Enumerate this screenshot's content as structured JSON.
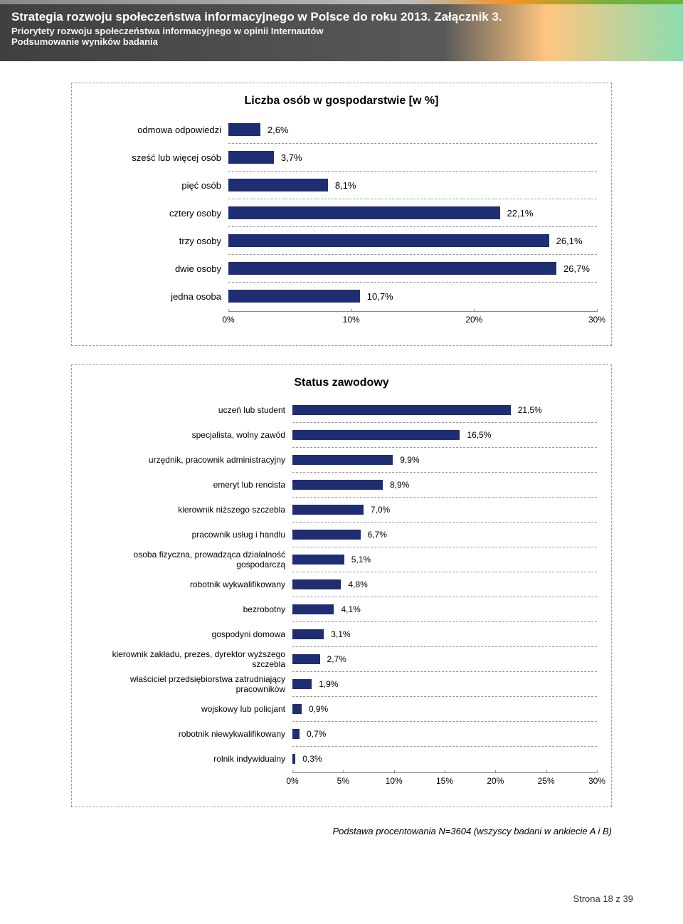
{
  "header": {
    "title": "Strategia rozwoju społeczeństwa informacyjnego w Polsce do roku 2013. Załącznik 3.",
    "sub1": "Priorytety rozwoju społeczeństwa informacyjnego w opinii Internautów",
    "sub2": "Podsumowanie wyników badania"
  },
  "chart1": {
    "title": "Liczba osób w gospodarstwie [w %]",
    "type": "bar",
    "bar_color": "#1f2d73",
    "grid_color": "#bfbfbf",
    "divider_color": "#999999",
    "xlim": 30,
    "ticks": [
      0,
      10,
      20,
      30
    ],
    "tick_labels": [
      "0%",
      "10%",
      "20%",
      "30%"
    ],
    "categories": [
      {
        "label": "odmowa odpowiedzi",
        "value": 2.6,
        "value_label": "2,6%"
      },
      {
        "label": "sześć lub więcej osób",
        "value": 3.7,
        "value_label": "3,7%"
      },
      {
        "label": "pięć osób",
        "value": 8.1,
        "value_label": "8,1%"
      },
      {
        "label": "cztery osoby",
        "value": 22.1,
        "value_label": "22,1%"
      },
      {
        "label": "trzy osoby",
        "value": 26.1,
        "value_label": "26,1%"
      },
      {
        "label": "dwie osoby",
        "value": 26.7,
        "value_label": "26,7%"
      },
      {
        "label": "jedna osoba",
        "value": 10.7,
        "value_label": "10,7%"
      }
    ]
  },
  "chart2": {
    "title": "Status zawodowy",
    "type": "bar",
    "bar_color": "#1f2d73",
    "grid_color": "#bfbfbf",
    "divider_color": "#999999",
    "xlim": 30,
    "ticks": [
      0,
      5,
      10,
      15,
      20,
      25,
      30
    ],
    "tick_labels": [
      "0%",
      "5%",
      "10%",
      "15%",
      "20%",
      "25%",
      "30%"
    ],
    "categories": [
      {
        "label": "uczeń lub student",
        "value": 21.5,
        "value_label": "21,5%"
      },
      {
        "label": "specjalista, wolny zawód",
        "value": 16.5,
        "value_label": "16,5%"
      },
      {
        "label": "urzędnik, pracownik administracyjny",
        "value": 9.9,
        "value_label": "9,9%"
      },
      {
        "label": "emeryt lub rencista",
        "value": 8.9,
        "value_label": "8,9%"
      },
      {
        "label": "kierownik niższego szczebla",
        "value": 7.0,
        "value_label": "7,0%"
      },
      {
        "label": "pracownik usług i handlu",
        "value": 6.7,
        "value_label": "6,7%"
      },
      {
        "label": "osoba fizyczna, prowadząca działalność gospodarczą",
        "value": 5.1,
        "value_label": "5,1%"
      },
      {
        "label": "robotnik wykwalifikowany",
        "value": 4.8,
        "value_label": "4,8%"
      },
      {
        "label": "bezrobotny",
        "value": 4.1,
        "value_label": "4,1%"
      },
      {
        "label": "gospodyni domowa",
        "value": 3.1,
        "value_label": "3,1%"
      },
      {
        "label": "kierownik zakładu, prezes, dyrektor wyższego szczebla",
        "value": 2.7,
        "value_label": "2,7%"
      },
      {
        "label": "właściciel przedsiębiorstwa zatrudniający pracowników",
        "value": 1.9,
        "value_label": "1,9%"
      },
      {
        "label": "wojskowy lub policjant",
        "value": 0.9,
        "value_label": "0,9%"
      },
      {
        "label": "robotnik niewykwalifikowany",
        "value": 0.7,
        "value_label": "0,7%"
      },
      {
        "label": "rolnik indywidualny",
        "value": 0.3,
        "value_label": "0,3%"
      }
    ]
  },
  "footnote": "Podstawa procentowania N=3604 (wszyscy badani w ankiecie A i B)",
  "footer": "Strona 18 z 39"
}
